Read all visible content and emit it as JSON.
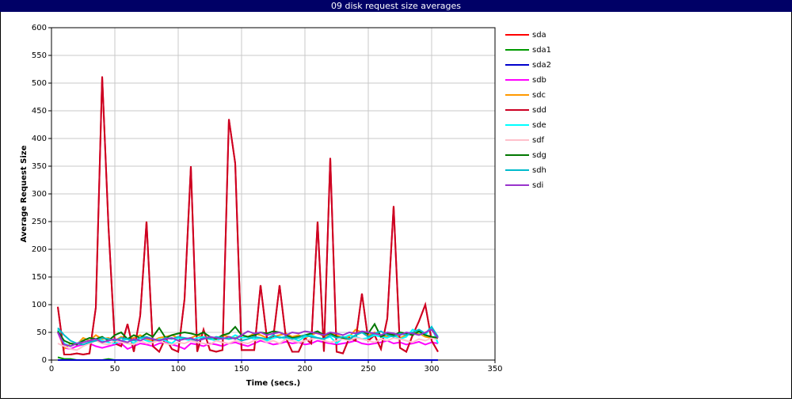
{
  "chart_data": {
    "type": "line",
    "title": "09 disk request size averages",
    "x_label": "Time (secs.)",
    "y_label": "Average Request Size",
    "xlim": [
      0,
      350
    ],
    "xticks": [
      0,
      50,
      100,
      150,
      200,
      250,
      300,
      350
    ],
    "ylim": [
      0,
      600
    ],
    "yticks": [
      0,
      50,
      100,
      150,
      200,
      250,
      300,
      350,
      400,
      450,
      500,
      550,
      600
    ],
    "grid": true,
    "legend": "right",
    "x": [
      5,
      10,
      15,
      20,
      25,
      30,
      35,
      40,
      45,
      50,
      55,
      60,
      65,
      70,
      75,
      80,
      85,
      90,
      95,
      100,
      105,
      110,
      115,
      120,
      125,
      130,
      135,
      140,
      145,
      150,
      155,
      160,
      165,
      170,
      175,
      180,
      185,
      190,
      195,
      200,
      205,
      210,
      215,
      220,
      225,
      230,
      235,
      240,
      245,
      250,
      255,
      260,
      265,
      270,
      275,
      280,
      285,
      290,
      295,
      300,
      305
    ],
    "series": [
      {
        "name": "sda",
        "color": "#ff0000",
        "values": [
          96,
          10,
          10,
          12,
          10,
          12,
          95,
          512,
          240,
          30,
          25,
          65,
          15,
          80,
          250,
          25,
          15,
          40,
          20,
          15,
          110,
          350,
          15,
          55,
          18,
          15,
          18,
          435,
          355,
          18,
          18,
          18,
          135,
          40,
          40,
          135,
          40,
          15,
          15,
          40,
          30,
          250,
          15,
          365,
          15,
          12,
          40,
          35,
          120,
          35,
          45,
          20,
          75,
          278,
          22,
          15,
          45,
          70,
          100,
          35,
          15
        ]
      },
      {
        "name": "sda1",
        "color": "#009900",
        "values": [
          5,
          2,
          2,
          0,
          0,
          0,
          0,
          0,
          2,
          0,
          0,
          0,
          0,
          0,
          0,
          0,
          0,
          0,
          0,
          0,
          0,
          0,
          0,
          0,
          0,
          0,
          0,
          0,
          0,
          0,
          0,
          0,
          0,
          0,
          0,
          0,
          0,
          0,
          0,
          0,
          0,
          0,
          0,
          0,
          0,
          0,
          0,
          0,
          0,
          0,
          0,
          0,
          0,
          0,
          0,
          0,
          0,
          0,
          0,
          0,
          0
        ]
      },
      {
        "name": "sda2",
        "color": "#0000cc",
        "values": [
          0,
          0,
          0,
          0,
          0,
          0,
          0,
          0,
          0,
          0,
          0,
          0,
          0,
          0,
          0,
          0,
          0,
          0,
          0,
          0,
          0,
          0,
          0,
          0,
          0,
          0,
          0,
          0,
          0,
          0,
          0,
          0,
          0,
          0,
          0,
          0,
          0,
          0,
          0,
          0,
          0,
          0,
          0,
          0,
          0,
          0,
          0,
          0,
          0,
          0,
          0,
          0,
          0,
          0,
          0,
          0,
          0,
          0,
          0,
          0,
          0
        ]
      },
      {
        "name": "sdb",
        "color": "#ff00ff",
        "values": [
          50,
          22,
          20,
          25,
          28,
          30,
          25,
          22,
          25,
          28,
          30,
          20,
          25,
          30,
          28,
          25,
          30,
          32,
          28,
          25,
          20,
          30,
          28,
          25,
          30,
          28,
          25,
          30,
          32,
          28,
          25,
          30,
          35,
          32,
          28,
          30,
          33,
          30,
          32,
          28,
          30,
          35,
          32,
          30,
          28,
          30,
          32,
          35,
          30,
          28,
          30,
          32,
          35,
          30,
          32,
          28,
          30,
          33,
          28,
          32,
          30
        ]
      },
      {
        "name": "sdc",
        "color": "#ff9900",
        "values": [
          55,
          20,
          30,
          28,
          40,
          35,
          45,
          38,
          40,
          35,
          42,
          38,
          40,
          45,
          38,
          35,
          40,
          42,
          45,
          40,
          38,
          40,
          45,
          42,
          40,
          38,
          45,
          42,
          40,
          45,
          42,
          48,
          45,
          40,
          42,
          45,
          48,
          42,
          45,
          40,
          45,
          50,
          42,
          48,
          45,
          40,
          42,
          55,
          50,
          45,
          50,
          45,
          42,
          48,
          40,
          45,
          50,
          48,
          42,
          40,
          38
        ]
      },
      {
        "name": "sdd",
        "color": "#cc0022",
        "values": [
          96,
          10,
          10,
          12,
          10,
          12,
          95,
          512,
          240,
          30,
          25,
          65,
          15,
          80,
          250,
          25,
          15,
          40,
          20,
          15,
          110,
          350,
          15,
          55,
          18,
          15,
          18,
          435,
          355,
          18,
          18,
          18,
          135,
          40,
          40,
          135,
          40,
          15,
          15,
          40,
          30,
          250,
          15,
          365,
          15,
          12,
          40,
          35,
          120,
          35,
          45,
          20,
          75,
          278,
          22,
          15,
          45,
          70,
          100,
          35,
          15
        ]
      },
      {
        "name": "sde",
        "color": "#00ffff",
        "values": [
          55,
          30,
          25,
          30,
          35,
          40,
          38,
          35,
          32,
          30,
          35,
          38,
          30,
          40,
          35,
          32,
          38,
          35,
          30,
          40,
          38,
          35,
          40,
          42,
          38,
          35,
          40,
          38,
          45,
          40,
          42,
          38,
          40,
          35,
          40,
          42,
          38,
          40,
          35,
          42,
          45,
          40,
          38,
          42,
          30,
          40,
          45,
          42,
          38,
          40,
          45,
          42,
          40,
          45,
          38,
          42,
          55,
          50,
          45,
          60,
          30
        ]
      },
      {
        "name": "sdf",
        "color": "#ffc0cb",
        "values": [
          30,
          25,
          20,
          18,
          25,
          30,
          35,
          30,
          28,
          35,
          32,
          30,
          28,
          35,
          30,
          32,
          35,
          30,
          28,
          32,
          30,
          35,
          32,
          30,
          28,
          35,
          32,
          30,
          35,
          32,
          30,
          35,
          38,
          32,
          35,
          30,
          38,
          35,
          32,
          35,
          38,
          40,
          35,
          32,
          35,
          38,
          35,
          40,
          38,
          35,
          32,
          38,
          35,
          40,
          38,
          35,
          32,
          38,
          35,
          40,
          38
        ]
      },
      {
        "name": "sdg",
        "color": "#007700",
        "values": [
          52,
          35,
          30,
          28,
          35,
          40,
          38,
          42,
          35,
          45,
          50,
          38,
          45,
          40,
          48,
          42,
          58,
          40,
          45,
          48,
          50,
          48,
          45,
          50,
          42,
          38,
          45,
          48,
          60,
          45,
          42,
          45,
          50,
          48,
          52,
          50,
          45,
          40,
          42,
          45,
          48,
          52,
          45,
          48,
          42,
          40,
          38,
          45,
          50,
          48,
          65,
          42,
          48,
          45,
          50,
          48,
          45,
          52,
          45,
          42,
          40
        ]
      },
      {
        "name": "sdh",
        "color": "#00bbcc",
        "values": [
          58,
          45,
          35,
          30,
          28,
          32,
          35,
          40,
          38,
          35,
          40,
          38,
          35,
          40,
          42,
          38,
          35,
          40,
          38,
          42,
          40,
          38,
          35,
          40,
          38,
          42,
          40,
          38,
          40,
          35,
          38,
          42,
          40,
          38,
          45,
          40,
          42,
          38,
          40,
          45,
          42,
          40,
          38,
          45,
          40,
          42,
          38,
          45,
          50,
          42,
          48,
          52,
          45,
          42,
          48,
          45,
          50,
          55,
          48,
          60,
          42
        ]
      },
      {
        "name": "sdi",
        "color": "#9933cc",
        "values": [
          50,
          28,
          25,
          30,
          32,
          35,
          38,
          32,
          35,
          38,
          35,
          32,
          38,
          35,
          40,
          38,
          35,
          38,
          40,
          35,
          38,
          40,
          35,
          38,
          42,
          40,
          38,
          42,
          38,
          45,
          52,
          48,
          50,
          45,
          48,
          50,
          45,
          50,
          48,
          52,
          50,
          48,
          45,
          50,
          48,
          45,
          50,
          48,
          52,
          50,
          48,
          45,
          50,
          48,
          45,
          50,
          48,
          45,
          50,
          55,
          40
        ]
      }
    ]
  }
}
